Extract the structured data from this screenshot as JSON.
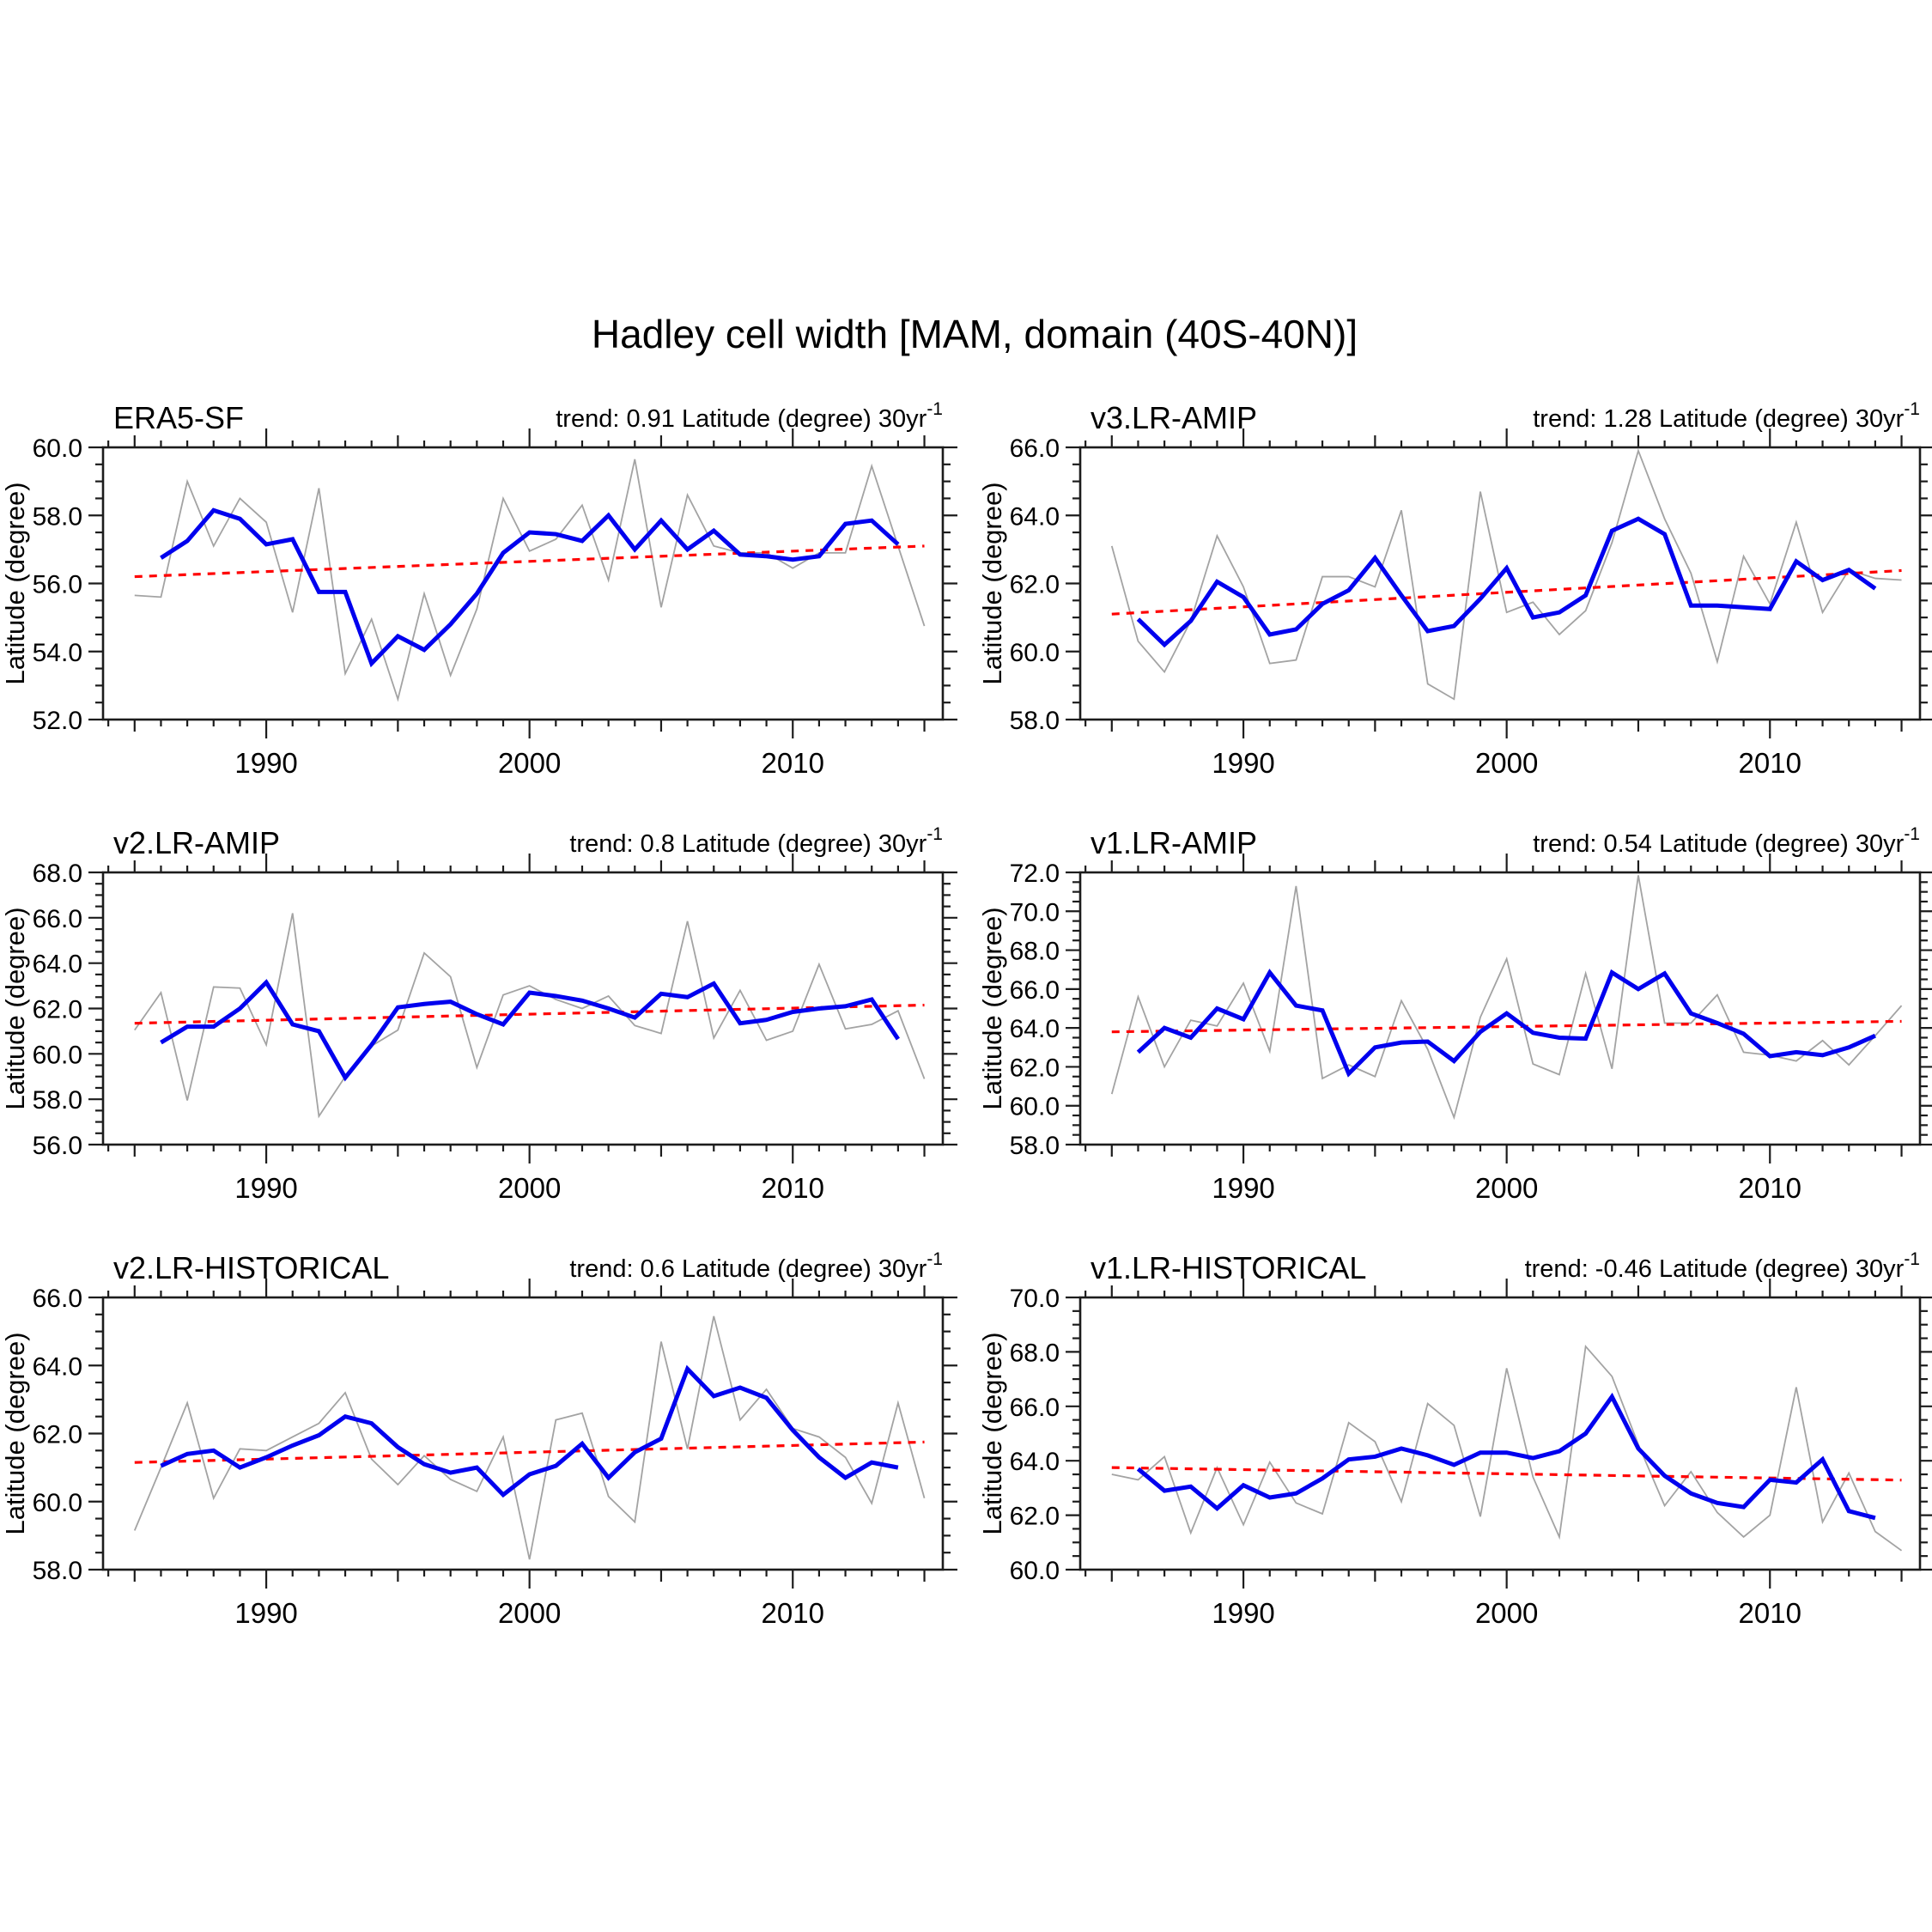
{
  "figure": {
    "title": "Hadley cell width [MAM, domain (40S-40N)]",
    "background": "#ffffff"
  },
  "colors": {
    "annual_line": "#a3a3a3",
    "smoothed_line": "#0000ee",
    "trend_line": "#ff0000",
    "axis": "#1c1c1c",
    "text": "#000000"
  },
  "axes_common": {
    "ylabel": "Latitude (degree)",
    "x_major_tick_labels": [
      "1990",
      "2000",
      "2010"
    ],
    "x_major_ticks": [
      1990,
      2000,
      2010
    ],
    "x_medium_ticks": [
      1985,
      1995,
      2005,
      2015
    ],
    "x_range": [
      1983.8,
      2015.7
    ],
    "annual_start_year": 1985,
    "smoothed_start_year": 1986,
    "y_major_step": 2,
    "y_minor_step": 0.5
  },
  "chart_data": [
    {
      "type": "line",
      "title": "ERA5-SF",
      "trend_label": "trend: 0.91 Latitude (degree) 30yr",
      "trend_superscript": "-1",
      "ylabel": "Latitude (degree)",
      "ylim": [
        52.0,
        60.0
      ],
      "ytick_labels": [
        "52.0",
        "54.0",
        "56.0",
        "58.0",
        "60.0"
      ],
      "series": [
        {
          "name": "annual",
          "start_year": 1985,
          "values": [
            55.65,
            55.6,
            59.0,
            57.1,
            58.5,
            57.8,
            55.15,
            58.8,
            53.35,
            54.95,
            52.6,
            55.7,
            53.3,
            55.25,
            58.5,
            56.95,
            57.3,
            58.3,
            56.1,
            59.65,
            55.3,
            58.6,
            57.1,
            56.9,
            56.9,
            56.45,
            56.9,
            56.9,
            59.45,
            57.1,
            54.75
          ]
        },
        {
          "name": "smoothed",
          "start_year": 1986,
          "values": [
            56.75,
            57.25,
            58.15,
            57.9,
            57.15,
            57.3,
            55.75,
            55.75,
            53.65,
            54.45,
            54.05,
            54.8,
            55.7,
            56.9,
            57.5,
            57.45,
            57.25,
            58.0,
            57.0,
            57.85,
            57.0,
            57.55,
            56.85,
            56.8,
            56.7,
            56.8,
            57.75,
            57.85,
            57.15
          ]
        },
        {
          "name": "trend",
          "endpoints": [
            [
              1985,
              56.2
            ],
            [
              2015,
              57.1
            ]
          ]
        }
      ]
    },
    {
      "type": "line",
      "title": "v3.LR-AMIP",
      "trend_label": "trend: 1.28 Latitude (degree) 30yr",
      "trend_superscript": "-1",
      "ylabel": "Latitude (degree)",
      "ylim": [
        58.0,
        66.0
      ],
      "ytick_labels": [
        "58.0",
        "60.0",
        "62.0",
        "64.0",
        "66.0"
      ],
      "series": [
        {
          "name": "annual",
          "start_year": 1985,
          "values": [
            63.1,
            60.3,
            59.4,
            60.9,
            63.4,
            61.9,
            59.65,
            59.75,
            62.2,
            62.2,
            61.9,
            64.15,
            59.05,
            58.6,
            64.7,
            61.15,
            61.45,
            60.5,
            61.2,
            63.2,
            65.9,
            63.9,
            62.3,
            59.7,
            62.8,
            61.4,
            63.8,
            61.15,
            62.4,
            62.15,
            62.1
          ]
        },
        {
          "name": "smoothed",
          "start_year": 1986,
          "values": [
            60.95,
            60.2,
            60.9,
            62.05,
            61.6,
            60.5,
            60.65,
            61.4,
            61.8,
            62.75,
            61.65,
            60.6,
            60.75,
            61.55,
            62.45,
            61.0,
            61.15,
            61.65,
            63.55,
            63.9,
            63.45,
            61.35,
            61.35,
            61.3,
            61.25,
            62.65,
            62.1,
            62.4,
            61.85
          ]
        },
        {
          "name": "trend",
          "endpoints": [
            [
              1985,
              61.1
            ],
            [
              2015,
              62.38
            ]
          ]
        }
      ]
    },
    {
      "type": "line",
      "title": "v2.LR-AMIP",
      "trend_label": "trend: 0.8 Latitude (degree) 30yr",
      "trend_superscript": "-1",
      "ylabel": "Latitude (degree)",
      "ylim": [
        56.0,
        68.0
      ],
      "ytick_labels": [
        "56.0",
        "58.0",
        "60.0",
        "62.0",
        "64.0",
        "66.0",
        "68.0"
      ],
      "series": [
        {
          "name": "annual",
          "start_year": 1985,
          "values": [
            61.05,
            62.7,
            57.95,
            62.95,
            62.9,
            60.4,
            66.2,
            57.25,
            59.0,
            60.35,
            61.05,
            64.45,
            63.4,
            59.4,
            62.6,
            63.0,
            62.4,
            62.0,
            62.55,
            61.25,
            60.9,
            65.85,
            60.7,
            62.8,
            60.6,
            61.0,
            63.95,
            61.1,
            61.3,
            61.9,
            58.9
          ]
        },
        {
          "name": "smoothed",
          "start_year": 1986,
          "values": [
            60.5,
            61.2,
            61.2,
            62.0,
            63.15,
            61.3,
            61.0,
            58.95,
            60.4,
            62.05,
            62.2,
            62.3,
            61.75,
            61.3,
            62.7,
            62.55,
            62.35,
            62.0,
            61.6,
            62.65,
            62.5,
            63.1,
            61.35,
            61.5,
            61.85,
            62.0,
            62.1,
            62.4,
            60.65
          ]
        },
        {
          "name": "trend",
          "endpoints": [
            [
              1985,
              61.35
            ],
            [
              2015,
              62.15
            ]
          ]
        }
      ]
    },
    {
      "type": "line",
      "title": "v1.LR-AMIP",
      "trend_label": "trend: 0.54 Latitude (degree) 30yr",
      "trend_superscript": "-1",
      "ylabel": "Latitude (degree)",
      "ylim": [
        58.0,
        72.0
      ],
      "ytick_labels": [
        "58.0",
        "60.0",
        "62.0",
        "64.0",
        "66.0",
        "68.0",
        "70.0",
        "72.0"
      ],
      "series": [
        {
          "name": "annual",
          "start_year": 1985,
          "values": [
            60.6,
            65.6,
            62.0,
            64.4,
            64.1,
            66.3,
            62.8,
            71.3,
            61.4,
            62.1,
            61.5,
            65.4,
            62.9,
            59.4,
            64.55,
            67.55,
            62.15,
            61.6,
            66.8,
            61.9,
            71.85,
            64.25,
            64.25,
            65.7,
            62.75,
            62.6,
            62.3,
            63.35,
            62.1,
            63.6,
            65.15
          ]
        },
        {
          "name": "smoothed",
          "start_year": 1986,
          "values": [
            62.75,
            64.0,
            63.5,
            65.0,
            64.45,
            66.85,
            65.15,
            64.9,
            61.65,
            63.0,
            63.25,
            63.3,
            62.3,
            63.8,
            64.75,
            63.75,
            63.5,
            63.45,
            66.85,
            66.0,
            66.8,
            64.75,
            64.25,
            63.7,
            62.55,
            62.75,
            62.6,
            63.0,
            63.6
          ]
        },
        {
          "name": "trend",
          "endpoints": [
            [
              1985,
              63.8
            ],
            [
              2015,
              64.34
            ]
          ]
        }
      ]
    },
    {
      "type": "line",
      "title": "v2.LR-HISTORICAL",
      "trend_label": "trend: 0.6 Latitude (degree) 30yr",
      "trend_superscript": "-1",
      "ylabel": "Latitude (degree)",
      "ylim": [
        58.0,
        66.0
      ],
      "ytick_labels": [
        "58.0",
        "60.0",
        "62.0",
        "64.0",
        "66.0"
      ],
      "series": [
        {
          "name": "annual",
          "start_year": 1985,
          "values": [
            59.15,
            61.0,
            62.9,
            60.1,
            61.55,
            61.5,
            61.9,
            62.3,
            63.2,
            61.25,
            60.5,
            61.35,
            60.65,
            60.3,
            61.9,
            58.3,
            62.4,
            62.6,
            60.15,
            59.4,
            64.7,
            61.55,
            65.45,
            62.4,
            63.3,
            62.15,
            61.9,
            61.3,
            59.95,
            62.9,
            60.1
          ]
        },
        {
          "name": "smoothed",
          "start_year": 1986,
          "values": [
            61.05,
            61.4,
            61.5,
            61.0,
            61.3,
            61.65,
            61.95,
            62.5,
            62.3,
            61.6,
            61.1,
            60.85,
            61.0,
            60.2,
            60.8,
            61.05,
            61.7,
            60.7,
            61.45,
            61.85,
            63.9,
            63.1,
            63.35,
            63.05,
            62.1,
            61.3,
            60.7,
            61.15,
            61.0
          ]
        },
        {
          "name": "trend",
          "endpoints": [
            [
              1985,
              61.15
            ],
            [
              2015,
              61.75
            ]
          ]
        }
      ]
    },
    {
      "type": "line",
      "title": "v1.LR-HISTORICAL",
      "trend_label": "trend: -0.46 Latitude (degree) 30yr",
      "trend_superscript": "-1",
      "ylabel": "Latitude (degree)",
      "ylim": [
        60.0,
        70.0
      ],
      "ytick_labels": [
        "60.0",
        "62.0",
        "64.0",
        "66.0",
        "68.0",
        "70.0"
      ],
      "series": [
        {
          "name": "annual",
          "start_year": 1985,
          "values": [
            63.5,
            63.3,
            64.15,
            61.35,
            63.75,
            61.65,
            63.95,
            62.45,
            62.05,
            65.4,
            64.7,
            62.5,
            66.1,
            65.3,
            61.95,
            67.4,
            63.4,
            61.2,
            68.2,
            67.1,
            64.6,
            62.35,
            63.6,
            62.1,
            61.2,
            62.0,
            66.7,
            61.75,
            63.55,
            61.4,
            60.7
          ]
        },
        {
          "name": "smoothed",
          "start_year": 1986,
          "values": [
            63.7,
            62.9,
            63.05,
            62.25,
            63.1,
            62.65,
            62.8,
            63.35,
            64.05,
            64.15,
            64.45,
            64.2,
            63.85,
            64.3,
            64.3,
            64.1,
            64.35,
            65.0,
            66.35,
            64.45,
            63.45,
            62.8,
            62.45,
            62.3,
            63.3,
            63.2,
            64.05,
            62.15,
            61.9
          ]
        },
        {
          "name": "trend",
          "endpoints": [
            [
              1985,
              63.75
            ],
            [
              2015,
              63.29
            ]
          ]
        }
      ]
    }
  ]
}
